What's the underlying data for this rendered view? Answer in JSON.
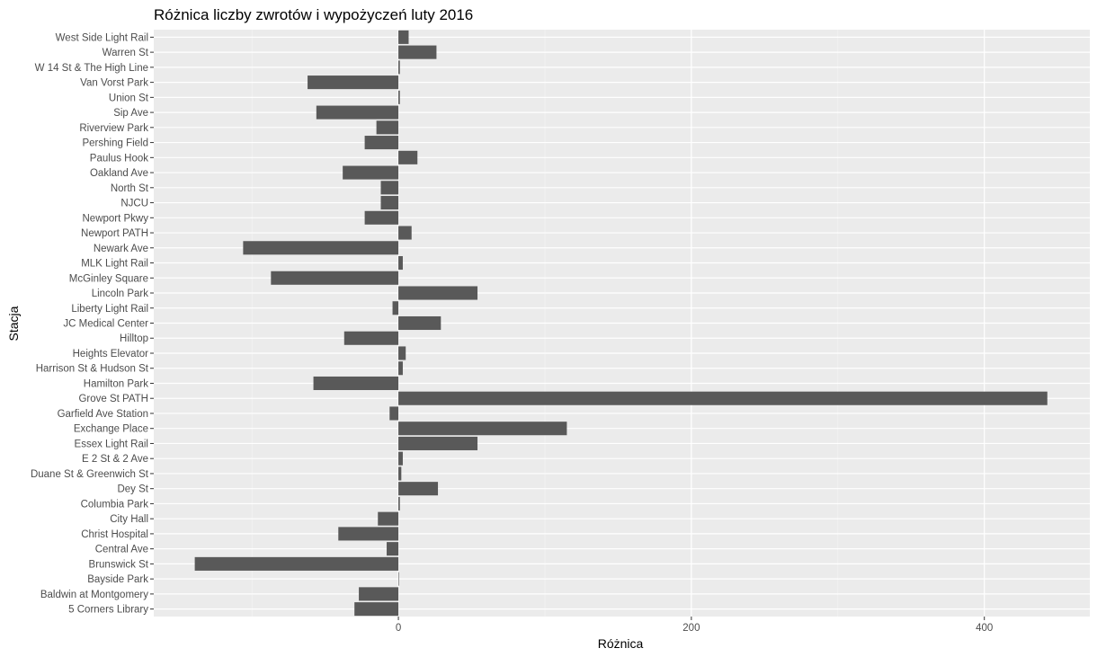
{
  "chart_data": {
    "type": "bar",
    "orientation": "horizontal",
    "title": "Różnica liczby zwrotów i wypożyczeń luty 2016",
    "xlabel": "Różnica",
    "ylabel": "Stacja",
    "xlim": [
      -167,
      472
    ],
    "xticks": [
      0,
      200,
      400
    ],
    "grid": true,
    "bar_color": "#595959",
    "panel_color": "#ebebeb",
    "categories": [
      "5 Corners Library",
      "Baldwin at Montgomery",
      "Bayside Park",
      "Brunswick St",
      "Central Ave",
      "Christ Hospital",
      "City Hall",
      "Columbia Park",
      "Dey St",
      "Duane St & Greenwich St",
      "E 2 St & 2 Ave",
      "Essex Light Rail",
      "Exchange Place",
      "Garfield Ave Station",
      "Grove St PATH",
      "Hamilton Park",
      "Harrison St & Hudson St",
      "Heights Elevator",
      "Hilltop",
      "JC Medical Center",
      "Liberty Light Rail",
      "Lincoln Park",
      "McGinley Square",
      "MLK Light Rail",
      "Newark Ave",
      "Newport PATH",
      "Newport Pkwy",
      "NJCU",
      "North St",
      "Oakland Ave",
      "Paulus Hook",
      "Pershing Field",
      "Riverview Park",
      "Sip Ave",
      "Union St",
      "Van Vorst Park",
      "W 14 St & The High Line",
      "Warren St",
      "West Side Light Rail"
    ],
    "values": [
      -30,
      -27,
      0,
      -139,
      -8,
      -41,
      -14,
      1,
      27,
      2,
      3,
      54,
      115,
      -6,
      443,
      -58,
      3,
      5,
      -37,
      29,
      -4,
      54,
      -87,
      3,
      -106,
      9,
      -23,
      -12,
      -12,
      -38,
      13,
      -23,
      -15,
      -56,
      1,
      -62,
      1,
      26,
      7
    ]
  }
}
